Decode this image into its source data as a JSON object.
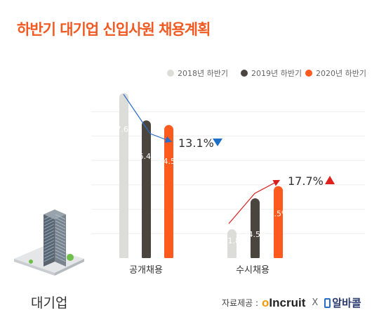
{
  "title": "하반기 대기업 신입사원 채용계획",
  "company_label": "대기업",
  "source": {
    "prefix": "자료제공 :",
    "logo1_mark": "o",
    "logo1_text": "Incruit",
    "separator": "X",
    "logo2_text": "알바콜"
  },
  "colors": {
    "title": "#f15a22",
    "series": [
      "#dcdcd8",
      "#4a453f",
      "#fe5a1d"
    ],
    "arrow_1": "#2a6dc8",
    "arrow_2": "#d81e1e",
    "down_marker": "#1e6fc8",
    "up_marker": "#e0201b"
  },
  "chart_data": {
    "type": "bar",
    "categories": [
      "공개채용",
      "수시채용"
    ],
    "series": [
      {
        "name": "2018년 하반기",
        "values": [
          67.6,
          11.8
        ],
        "labels": [
          "67.6%",
          "11.8%"
        ]
      },
      {
        "name": "2019년 하반기",
        "values": [
          56.4,
          24.5
        ],
        "labels": [
          "56.4%",
          "24.5%"
        ]
      },
      {
        "name": "2020년 하반기",
        "values": [
          54.5,
          29.5
        ],
        "labels": [
          "54.5%",
          "29.5%"
        ]
      }
    ],
    "annotations": [
      {
        "category": "공개채용",
        "text": "13.1%",
        "direction": "down"
      },
      {
        "category": "수시채용",
        "text": "17.7%",
        "direction": "up"
      }
    ],
    "ylim": [
      0,
      70
    ],
    "grid": true,
    "legend": "top-right"
  }
}
